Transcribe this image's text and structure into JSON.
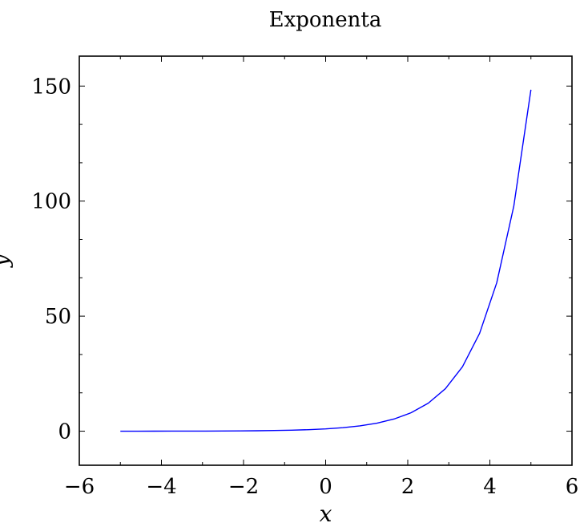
{
  "chart_data": {
    "type": "line",
    "title": "Exponenta",
    "xlabel": "x",
    "ylabel": "y",
    "xlim": [
      -6,
      6
    ],
    "ylim": [
      -14.8,
      163
    ],
    "xticks": [
      -6,
      -4,
      -2,
      0,
      2,
      4,
      6
    ],
    "xtick_labels": [
      "−6",
      "−4",
      "−2",
      "0",
      "2",
      "4",
      "6"
    ],
    "yticks": [
      0,
      50,
      100,
      150
    ],
    "ytick_labels": [
      "0",
      "50",
      "100",
      "150"
    ],
    "grid": false,
    "legend": "none",
    "series": [
      {
        "color": "#0000ff",
        "x": [
          -5,
          -4.583,
          -4.167,
          -3.75,
          -3.333,
          -2.917,
          -2.5,
          -2.083,
          -1.667,
          -1.25,
          -0.833,
          -0.417,
          0,
          0.417,
          0.833,
          1.25,
          1.667,
          2.083,
          2.5,
          2.917,
          3.333,
          3.75,
          4.167,
          4.583,
          5
        ],
        "y": [
          0.007,
          0.01,
          0.016,
          0.024,
          0.036,
          0.054,
          0.082,
          0.125,
          0.189,
          0.287,
          0.435,
          0.659,
          1,
          1.517,
          2.301,
          3.49,
          5.294,
          8.03,
          12.18,
          18.48,
          28.03,
          42.52,
          64.5,
          97.84,
          148.41
        ]
      }
    ]
  }
}
